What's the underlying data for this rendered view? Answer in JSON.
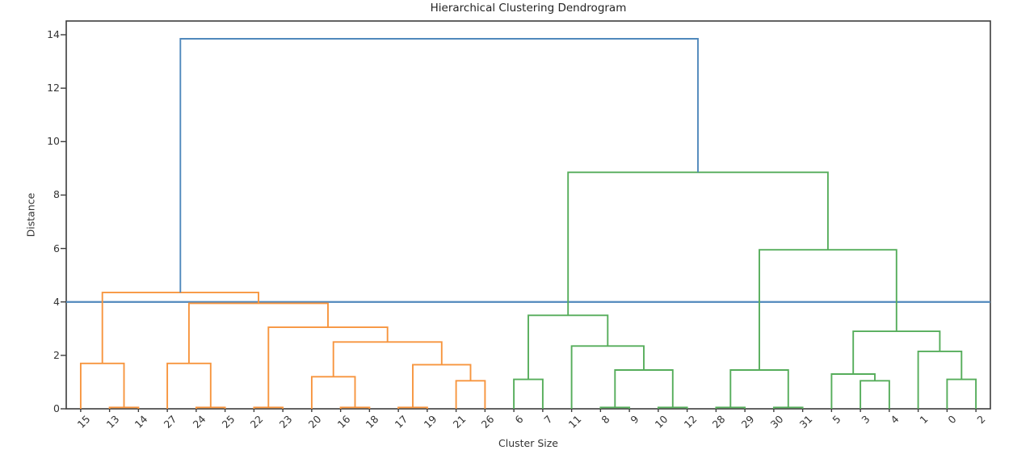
{
  "chart_data": {
    "type": "dendrogram",
    "title": "Hierarchical Clustering Dendrogram",
    "xlabel": "Cluster Size",
    "ylabel": "Distance",
    "yticks": [
      0,
      2,
      4,
      6,
      8,
      10,
      12,
      14
    ],
    "ylim": [
      0,
      14.5
    ],
    "grid": false,
    "legend": null,
    "threshold_line": {
      "y": 4.0,
      "color_key": "blue"
    },
    "leaves": [
      "15",
      "13",
      "14",
      "27",
      "24",
      "25",
      "22",
      "23",
      "20",
      "16",
      "18",
      "17",
      "19",
      "21",
      "26",
      "6",
      "7",
      "11",
      "8",
      "9",
      "10",
      "12",
      "28",
      "29",
      "30",
      "31",
      "5",
      "3",
      "4",
      "1",
      "0",
      "2"
    ],
    "links": [
      {
        "id": "m1",
        "a": "13",
        "b": "14",
        "h": 0.05,
        "color": "orange"
      },
      {
        "id": "m2",
        "a": "15",
        "b": "m1",
        "h": 1.7,
        "color": "orange"
      },
      {
        "id": "m3",
        "a": "24",
        "b": "25",
        "h": 0.05,
        "color": "orange"
      },
      {
        "id": "m4",
        "a": "27",
        "b": "m3",
        "h": 1.7,
        "color": "orange"
      },
      {
        "id": "m5",
        "a": "22",
        "b": "23",
        "h": 0.05,
        "color": "orange"
      },
      {
        "id": "m6",
        "a": "16",
        "b": "18",
        "h": 0.05,
        "color": "orange"
      },
      {
        "id": "m7",
        "a": "20",
        "b": "m6",
        "h": 1.2,
        "color": "orange"
      },
      {
        "id": "m8",
        "a": "17",
        "b": "19",
        "h": 0.05,
        "color": "orange"
      },
      {
        "id": "m9",
        "a": "21",
        "b": "26",
        "h": 1.05,
        "color": "orange"
      },
      {
        "id": "m10",
        "a": "m8",
        "b": "m9",
        "h": 1.65,
        "color": "orange"
      },
      {
        "id": "m11",
        "a": "m7",
        "b": "m10",
        "h": 2.5,
        "color": "orange"
      },
      {
        "id": "m12",
        "a": "m5",
        "b": "m11",
        "h": 3.05,
        "color": "orange"
      },
      {
        "id": "m13",
        "a": "m4",
        "b": "m12",
        "h": 3.95,
        "color": "orange"
      },
      {
        "id": "m14",
        "a": "m2",
        "b": "m13",
        "h": 4.35,
        "color": "orange"
      },
      {
        "id": "m15",
        "a": "6",
        "b": "7",
        "h": 1.1,
        "color": "green"
      },
      {
        "id": "m16",
        "a": "8",
        "b": "9",
        "h": 0.05,
        "color": "green"
      },
      {
        "id": "m17",
        "a": "10",
        "b": "12",
        "h": 0.05,
        "color": "green"
      },
      {
        "id": "m18",
        "a": "m16",
        "b": "m17",
        "h": 1.45,
        "color": "green"
      },
      {
        "id": "m19",
        "a": "11",
        "b": "m18",
        "h": 2.35,
        "color": "green"
      },
      {
        "id": "m20",
        "a": "m15",
        "b": "m19",
        "h": 3.5,
        "color": "green"
      },
      {
        "id": "m21",
        "a": "28",
        "b": "29",
        "h": 0.05,
        "color": "green"
      },
      {
        "id": "m22",
        "a": "30",
        "b": "31",
        "h": 0.05,
        "color": "green"
      },
      {
        "id": "m23",
        "a": "m21",
        "b": "m22",
        "h": 1.45,
        "color": "green"
      },
      {
        "id": "m24",
        "a": "3",
        "b": "4",
        "h": 1.05,
        "color": "green"
      },
      {
        "id": "m25",
        "a": "5",
        "b": "m24",
        "h": 1.3,
        "color": "green"
      },
      {
        "id": "m26",
        "a": "0",
        "b": "2",
        "h": 1.1,
        "color": "green"
      },
      {
        "id": "m27",
        "a": "1",
        "b": "m26",
        "h": 2.15,
        "color": "green"
      },
      {
        "id": "m28",
        "a": "m25",
        "b": "m27",
        "h": 2.9,
        "color": "green"
      },
      {
        "id": "m29",
        "a": "m23",
        "b": "m28",
        "h": 5.95,
        "color": "green"
      },
      {
        "id": "m30",
        "a": "m20",
        "b": "m29",
        "h": 8.85,
        "color": "green"
      },
      {
        "id": "m31",
        "a": "m14",
        "b": "m30",
        "h": 13.85,
        "color": "blue"
      }
    ],
    "colors": {
      "orange": "#f7953e",
      "green": "#56ad5b",
      "blue": "#5088bc",
      "axis": "#3c3c3c",
      "text": "#333333"
    }
  }
}
